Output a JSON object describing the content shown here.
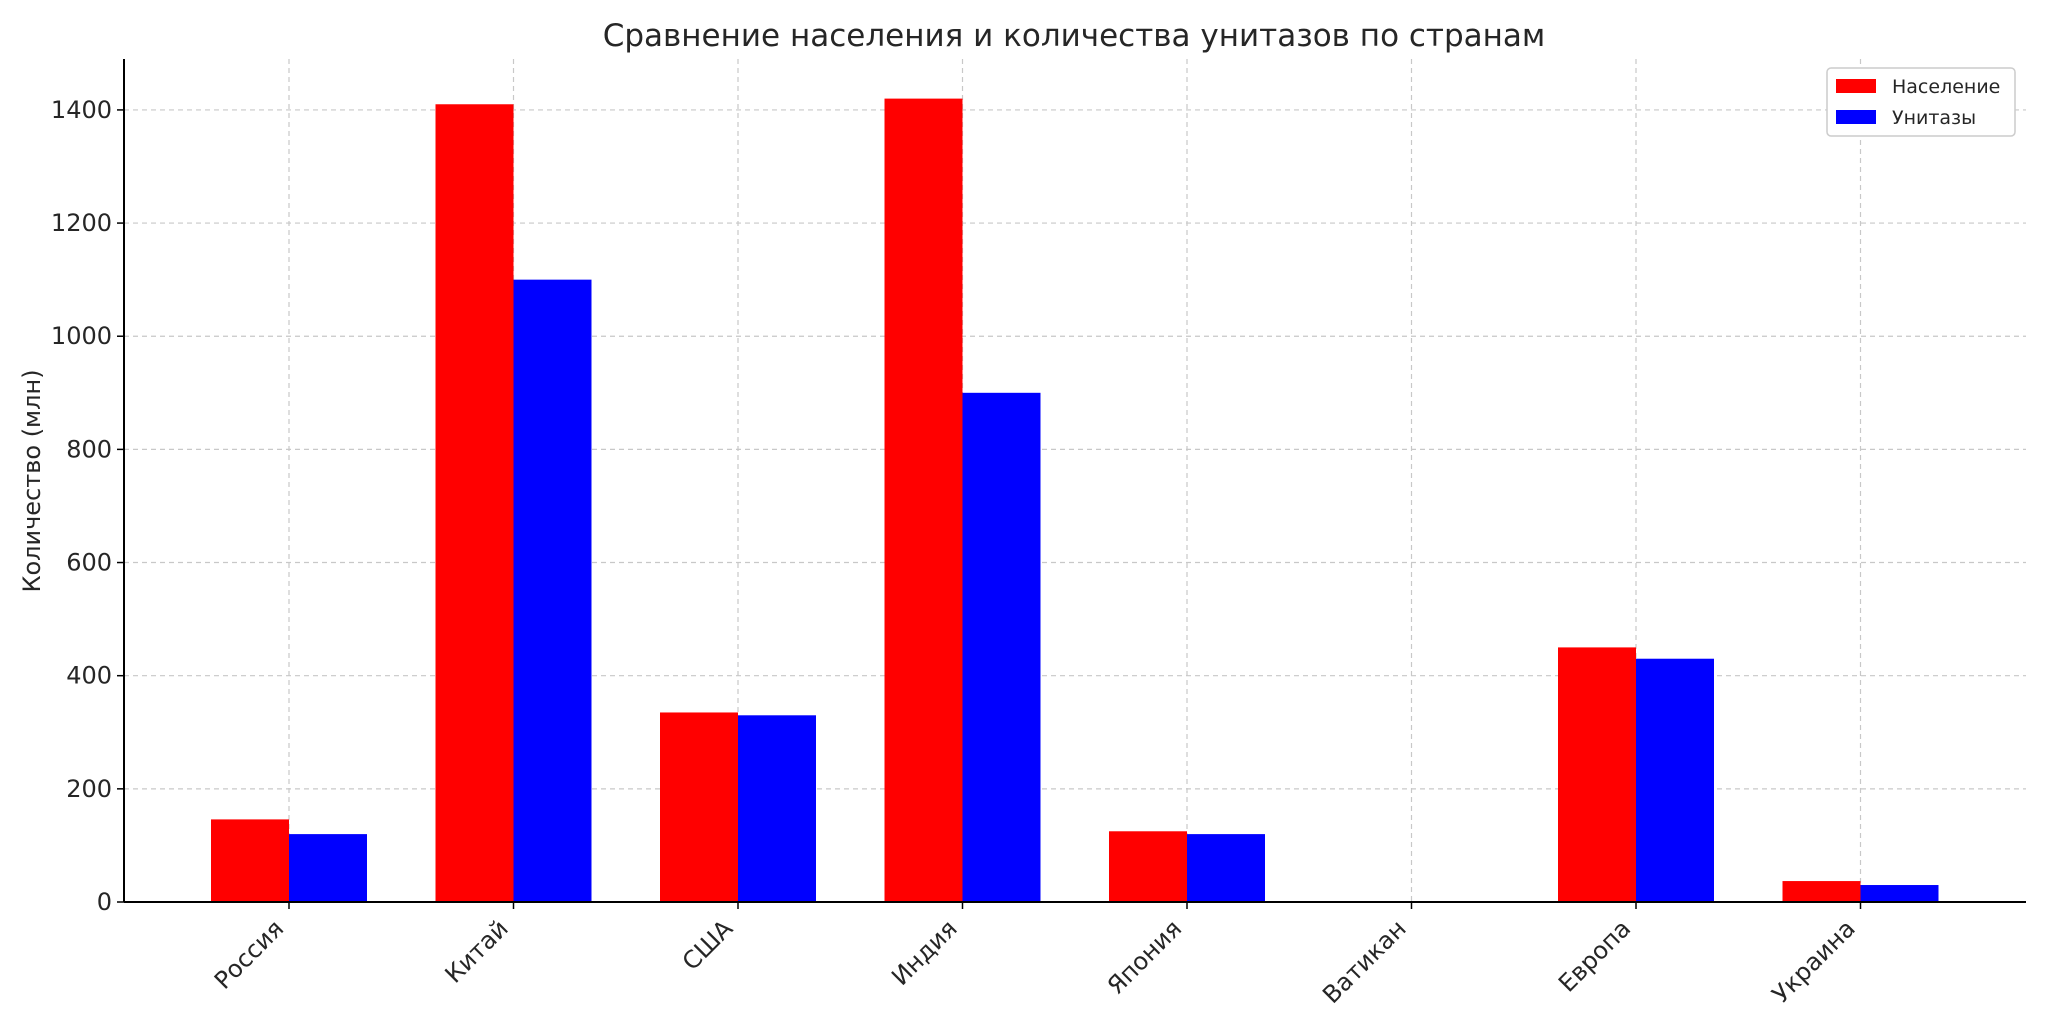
{
  "chart_data": {
    "type": "bar",
    "title": "Сравнение населения и количества унитазов по странам",
    "xlabel": "",
    "ylabel": "Количество (млн)",
    "categories": [
      "Россия",
      "Китай",
      "США",
      "Индия",
      "Япония",
      "Ватикан",
      "Европа",
      "Украина"
    ],
    "series": [
      {
        "name": "Население",
        "color": "#ff0000",
        "values": [
          146,
          1410,
          335,
          1420,
          125,
          0.0008,
          450,
          37
        ]
      },
      {
        "name": "Унитазы",
        "color": "#0000ff",
        "values": [
          120,
          1100,
          330,
          900,
          120,
          0.0007,
          430,
          30
        ]
      }
    ],
    "ylim": [
      0,
      1490
    ],
    "yticks": [
      0,
      200,
      400,
      600,
      800,
      1000,
      1200,
      1400
    ],
    "grid": true,
    "legend_position": "top-right"
  }
}
